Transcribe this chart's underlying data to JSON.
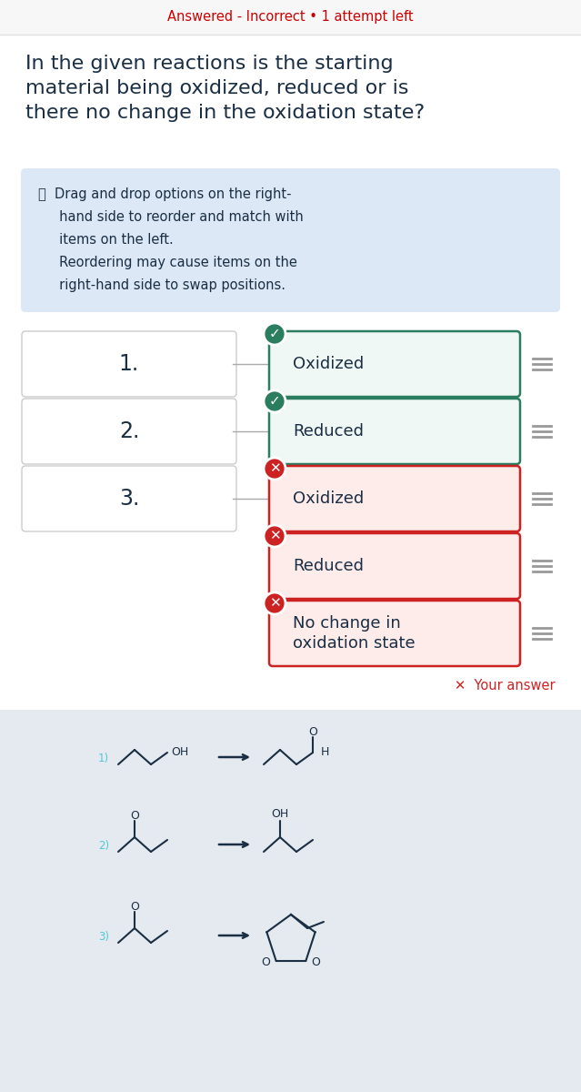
{
  "bg_color": "#ffffff",
  "title_text": "In the given reactions is the starting\nmaterial being oxidized, reduced or is\nthere no change in the oxidation state?",
  "title_color": "#1a2e44",
  "title_fontsize": 16,
  "status_text": "Answered - Incorrect • 1 attempt left",
  "status_color": "#cc0000",
  "info_box_color": "#dce8f5",
  "info_line1": "ⓘ  Drag and drop options on the right-",
  "info_line2": "     hand side to reorder and match with",
  "info_line3": "     items on the left.",
  "info_line4": "     Reordering may cause items on the",
  "info_line5": "     right-hand side to swap positions.",
  "info_text_color": "#1a2e44",
  "rows": [
    {
      "num": "1.",
      "label": "Oxidized",
      "correct": true,
      "has_left": true
    },
    {
      "num": "2.",
      "label": "Reduced",
      "correct": true,
      "has_left": true
    },
    {
      "num": "3.",
      "label": "Oxidized",
      "correct": false,
      "has_left": true
    },
    {
      "num": "",
      "label": "Reduced",
      "correct": false,
      "has_left": false
    },
    {
      "num": "",
      "label": "No change in\noxidation state",
      "correct": false,
      "has_left": false
    }
  ],
  "correct_border": "#2a7d5f",
  "correct_icon_bg": "#2a7d5f",
  "correct_fill": "#f0f8f5",
  "incorrect_border": "#cc2222",
  "incorrect_icon_bg": "#cc2222",
  "incorrect_fill": "#fdecea",
  "left_box_border": "#cccccc",
  "left_box_fill": "#ffffff",
  "drag_icon_color": "#999999",
  "your_answer_color": "#cc2222",
  "bottom_bg": "#e5eaf0",
  "reaction_label_color": "#4dc8d4",
  "mol_color": "#1a2e44"
}
